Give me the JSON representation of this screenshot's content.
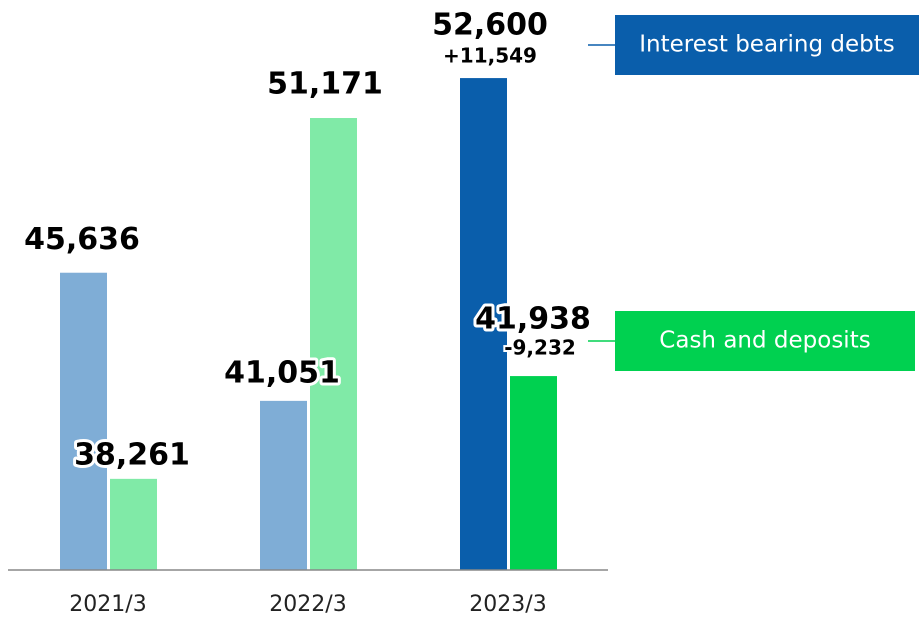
{
  "chart_data": {
    "type": "bar",
    "categories": [
      "2021/3",
      "2022/3",
      "2023/3"
    ],
    "series": [
      {
        "name": "Interest bearing debts",
        "color": "#0a5eab",
        "colors": [
          "#7fadd6",
          "#7fadd6",
          "#0a5eab"
        ],
        "values": [
          45636,
          41051,
          52600
        ],
        "value_labels": [
          "45,636",
          "41,051",
          "52,600"
        ]
      },
      {
        "name": "Cash and deposits",
        "color": "#00d150",
        "colors": [
          "#80eaa7",
          "#80eaa7",
          "#00d150"
        ],
        "values": [
          38261,
          51171,
          41938
        ],
        "value_labels": [
          "38,261",
          "51,171",
          "41,938"
        ]
      }
    ],
    "annotations": [
      "+11,549",
      "-9,232"
    ],
    "ylim": [
      35000,
      55000
    ]
  }
}
